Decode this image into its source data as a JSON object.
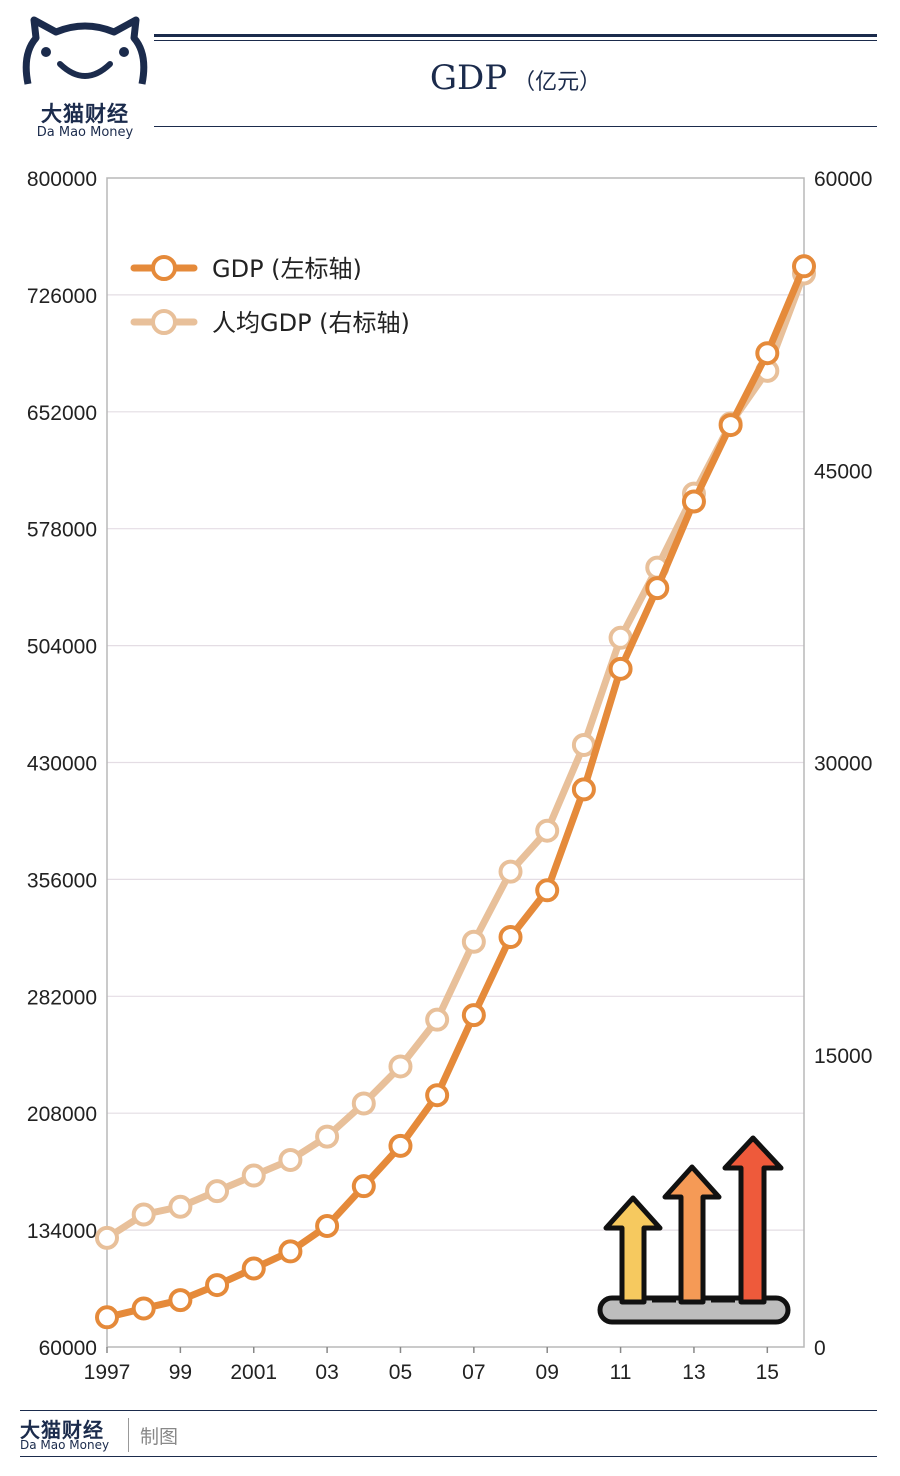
{
  "brand": {
    "name": "大猫财经",
    "subtitle": "Da Mao Money"
  },
  "title": {
    "main": "GDP",
    "unit": "（亿元）"
  },
  "colors": {
    "navy": "#1b2b4c",
    "gdp": "#e58a3a",
    "per_capita": "#e8c09a",
    "grid": "#e4dde4"
  },
  "chart_data": {
    "type": "line",
    "x": [
      1997,
      1998,
      1999,
      2000,
      2001,
      2002,
      2003,
      2004,
      2005,
      2006,
      2007,
      2008,
      2009,
      2010,
      2011,
      2012,
      2013,
      2014,
      2015,
      2016
    ],
    "x_tick_labels": [
      "1997",
      "99",
      "2001",
      "03",
      "05",
      "07",
      "09",
      "11",
      "13",
      "15"
    ],
    "x_tick_values": [
      1997,
      1999,
      2001,
      2003,
      2005,
      2007,
      2009,
      2011,
      2013,
      2015
    ],
    "y_left": {
      "ticks": [
        "800000",
        "726000",
        "652000",
        "578000",
        "504000",
        "430000",
        "356000",
        "282000",
        "208000",
        "134000",
        "60000"
      ],
      "lim": [
        60000,
        800000
      ]
    },
    "y_right": {
      "ticks": [
        "60000",
        "45000",
        "30000",
        "15000",
        "0"
      ],
      "lim": [
        0,
        60000
      ]
    },
    "grid": true,
    "legend_position": "top-left",
    "series": [
      {
        "name": "GDP (左标轴)",
        "axis": "left",
        "color": "#e58a3a",
        "values": [
          78800,
          84400,
          89700,
          99200,
          109700,
          120500,
          136600,
          161800,
          187300,
          219400,
          270100,
          319500,
          349100,
          413000,
          489300,
          540400,
          595200,
          643600,
          689100,
          744100
        ]
      },
      {
        "name": "人均GDP (右标轴)",
        "axis": "right",
        "color": "#e8c09a",
        "values": [
          5600,
          6800,
          7200,
          8000,
          8800,
          9600,
          10800,
          12500,
          14400,
          16800,
          20800,
          24400,
          26500,
          30900,
          36400,
          40000,
          43800,
          47400,
          50100,
          55100
        ]
      }
    ]
  },
  "footer": {
    "brand_name": "大猫财经",
    "brand_sub": "Da Mao Money",
    "made": "制图"
  }
}
